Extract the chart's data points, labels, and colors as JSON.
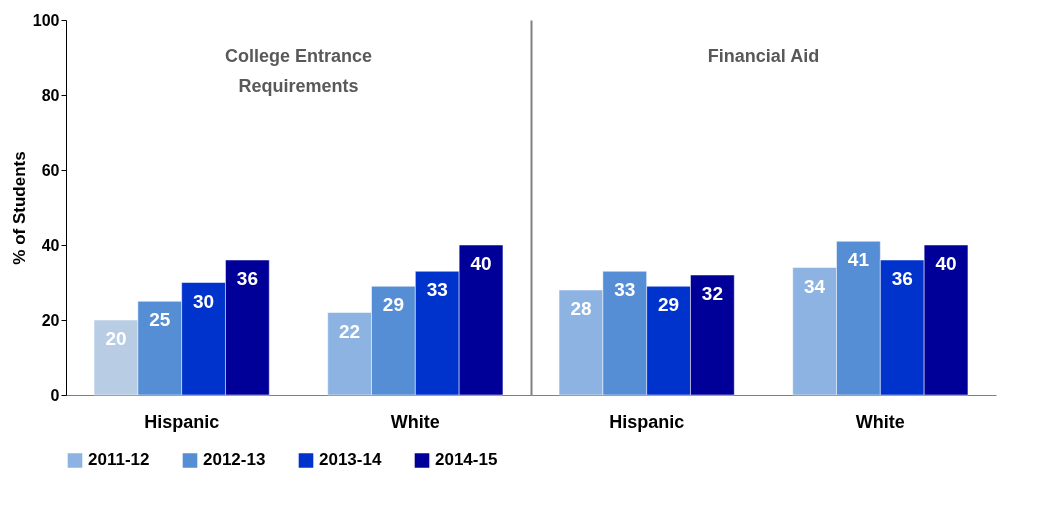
{
  "chart_data": [
    {
      "type": "bar",
      "title": "College Entrance Requirements",
      "categories": [
        "Hispanic",
        "White"
      ],
      "ylabel": "% of Students",
      "ylim": [
        0,
        100
      ],
      "yticks": [
        0,
        20,
        40,
        60,
        80,
        100
      ],
      "grid": false,
      "data_labels": true,
      "legend": "bottom",
      "series": [
        {
          "name": "2011-12",
          "color": "#8db3e2",
          "colors": [
            "#b8cce4",
            "#8db3e2"
          ],
          "values": [
            20,
            22
          ]
        },
        {
          "name": "2012-13",
          "color": "#558ed5",
          "values": [
            25,
            29
          ]
        },
        {
          "name": "2013-14",
          "color": "#0033cc",
          "values": [
            30,
            33
          ]
        },
        {
          "name": "2014-15",
          "color": "#000099",
          "values": [
            36,
            40
          ]
        }
      ]
    },
    {
      "type": "bar",
      "title": "Financial Aid",
      "categories": [
        "Hispanic",
        "White"
      ],
      "ylim": [
        0,
        100
      ],
      "yticks": [
        0,
        20,
        40,
        60,
        80,
        100
      ],
      "tick_labels": "x",
      "grid": false,
      "data_labels": true,
      "series": [
        {
          "name": "2011-12",
          "color": "#8db3e2",
          "values": [
            28,
            34
          ]
        },
        {
          "name": "2012-13",
          "color": "#558ed5",
          "values": [
            33,
            41
          ]
        },
        {
          "name": "2013-14",
          "color": "#0033cc",
          "values": [
            29,
            36
          ]
        },
        {
          "name": "2014-15",
          "color": "#000099",
          "values": [
            32,
            40
          ]
        }
      ]
    }
  ]
}
